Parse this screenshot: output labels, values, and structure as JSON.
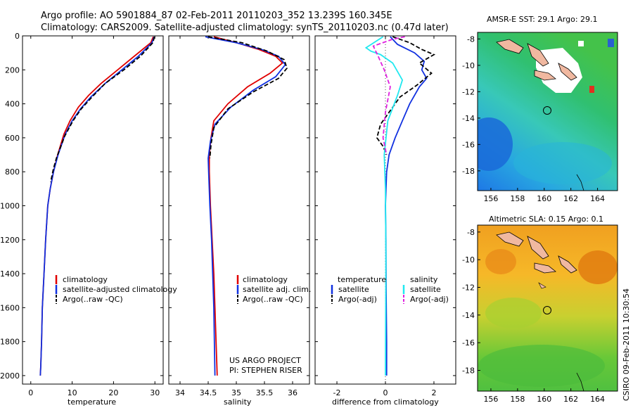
{
  "figure": {
    "title_line1": "Argo profile: AO 5901884_87 02-Feb-2011 20110203_352 13.239S 160.345E",
    "title_line2": "Climatology: CARS2009. Satellite-adjusted climatology: synTS_20110203.nc (0.47d later)",
    "credit": "CSIRO 09-Feb-2011 10:30:54",
    "project_line1": "US ARGO PROJECT",
    "project_line2": "PI: STEPHEN RISER"
  },
  "colors": {
    "climatology": "#e00000",
    "satellite": "#1030e0",
    "argo": "#000000",
    "salinity_sat": "#20e8f0",
    "salinity_argo": "#e020e0",
    "coast_fill": "#f0b8a0",
    "land_fill": "#ffffff"
  },
  "chart_data": [
    {
      "type": "line",
      "panel": "temperature",
      "xlabel": "temperature",
      "xlim": [
        -2,
        32
      ],
      "ylim": [
        2050,
        0
      ],
      "xticks": [
        "0",
        "10",
        "20",
        "30"
      ],
      "xtick_values": [
        0,
        10,
        20,
        30
      ],
      "yticks": [
        "0",
        "200",
        "400",
        "600",
        "800",
        "1000",
        "1200",
        "1400",
        "1600",
        "1800",
        "2000"
      ],
      "ytick_values": [
        0,
        200,
        400,
        600,
        800,
        1000,
        1200,
        1400,
        1600,
        1800,
        2000
      ],
      "legend": [
        "climatology",
        "satellite-adjusted climatology",
        "Argo(..raw -QC)"
      ],
      "series": [
        {
          "name": "climatology",
          "style": "solid",
          "color_key": "climatology",
          "x": [
            29.6,
            29.0,
            25.0,
            21.0,
            17.0,
            14.0,
            11.5,
            9.5,
            8.0,
            6.5,
            5.5,
            4.7,
            4.1,
            3.6,
            3.2,
            2.8,
            2.6,
            2.4,
            2.3
          ],
          "depth": [
            5,
            40,
            120,
            200,
            280,
            350,
            420,
            500,
            580,
            700,
            800,
            900,
            1000,
            1200,
            1400,
            1600,
            1800,
            1950,
            2000
          ]
        },
        {
          "name": "satellite-adjusted climatology",
          "style": "solid",
          "color_key": "satellite",
          "x": [
            29.8,
            29.3,
            26.0,
            22.0,
            18.0,
            14.5,
            12.0,
            10.0,
            8.3,
            6.6,
            5.5,
            4.7,
            4.1,
            3.6,
            3.2,
            2.8,
            2.6,
            2.4,
            2.3
          ],
          "depth": [
            5,
            40,
            120,
            200,
            280,
            360,
            430,
            500,
            580,
            700,
            800,
            900,
            1000,
            1200,
            1400,
            1600,
            1800,
            1950,
            2000
          ]
        },
        {
          "name": "Argo(..raw -QC)",
          "style": "dashed",
          "color_key": "argo",
          "x": [
            29.9,
            29.5,
            26.5,
            22.5,
            18.0,
            14.8,
            12.2,
            10.2,
            8.2,
            6.8,
            6.2,
            5.5,
            4.8
          ],
          "depth": [
            5,
            40,
            120,
            200,
            280,
            360,
            430,
            500,
            590,
            680,
            720,
            780,
            860
          ]
        }
      ]
    },
    {
      "type": "line",
      "panel": "salinity",
      "xlabel": "salinity",
      "xlim": [
        33.8,
        36.3
      ],
      "ylim": [
        2050,
        0
      ],
      "xticks": [
        "34",
        "34.5",
        "35",
        "35.5",
        "36"
      ],
      "xtick_values": [
        34,
        34.5,
        35,
        35.5,
        36
      ],
      "legend": [
        "climatology",
        "satellite adj. clim.",
        "Argo(..raw -QC)"
      ],
      "series": [
        {
          "name": "climatology",
          "style": "solid",
          "color_key": "climatology",
          "x": [
            34.6,
            35.0,
            35.4,
            35.7,
            35.82,
            35.6,
            35.2,
            34.85,
            34.6,
            34.55,
            34.52,
            34.52,
            34.54,
            34.57,
            34.6,
            34.62,
            34.64,
            34.66
          ],
          "depth": [
            5,
            40,
            80,
            120,
            160,
            220,
            300,
            400,
            500,
            600,
            700,
            800,
            1000,
            1200,
            1400,
            1600,
            1800,
            2000
          ]
        },
        {
          "name": "satellite adj. clim.",
          "style": "solid",
          "color_key": "satellite",
          "x": [
            34.45,
            35.0,
            35.45,
            35.75,
            35.87,
            35.7,
            35.3,
            34.9,
            34.62,
            34.54,
            34.5,
            34.51,
            34.53,
            34.56,
            34.58,
            34.6,
            34.61,
            34.62
          ],
          "depth": [
            5,
            40,
            80,
            120,
            170,
            240,
            320,
            420,
            520,
            620,
            720,
            820,
            1000,
            1200,
            1400,
            1600,
            1800,
            2000
          ]
        },
        {
          "name": "Argo(..raw -QC)",
          "style": "dashed",
          "color_key": "argo",
          "x": [
            34.5,
            35.1,
            35.55,
            35.85,
            35.9,
            35.75,
            35.3,
            34.85,
            34.6,
            34.55,
            34.53
          ],
          "depth": [
            5,
            40,
            90,
            140,
            190,
            250,
            330,
            430,
            540,
            640,
            720
          ]
        }
      ]
    },
    {
      "type": "line",
      "panel": "difference",
      "xlabel": "difference from climatology",
      "xlim": [
        -2.9,
        2.9
      ],
      "ylim": [
        2050,
        0
      ],
      "xticks": [
        "-2",
        "0",
        "2"
      ],
      "xtick_values": [
        -2,
        0,
        2
      ],
      "legend_temperature_title": "temperature",
      "legend_salinity_title": "salinity",
      "legend": [
        "satellite",
        "Argo(-adj)",
        "satellite",
        "Argo(-adj)"
      ],
      "series": [
        {
          "name": "temperature satellite",
          "style": "solid",
          "color_key": "satellite",
          "x": [
            0.2,
            0.5,
            1.2,
            1.6,
            1.5,
            1.7,
            1.4,
            1.0,
            0.7,
            0.4,
            0.15,
            0.05,
            0.0,
            0.02,
            0.03,
            0.05,
            0.05
          ],
          "depth": [
            5,
            50,
            100,
            150,
            200,
            250,
            300,
            400,
            500,
            600,
            700,
            800,
            1000,
            1200,
            1500,
            1800,
            2000
          ]
        },
        {
          "name": "temperature Argo(-adj)",
          "style": "dashed",
          "color_key": "argo",
          "x": [
            0.3,
            1.0,
            1.5,
            2.0,
            1.4,
            1.9,
            1.3,
            0.6,
            0.2,
            -0.2,
            -0.35,
            -0.1,
            0.05
          ],
          "depth": [
            5,
            40,
            80,
            110,
            160,
            220,
            290,
            360,
            440,
            520,
            600,
            650,
            700
          ]
        },
        {
          "name": "salinity satellite",
          "style": "solid",
          "color_key": "salinity_sat",
          "x": [
            -0.1,
            -0.8,
            -0.6,
            -0.2,
            0.3,
            0.7,
            0.5,
            0.1,
            -0.05,
            0.0,
            0.02,
            0.0
          ],
          "depth": [
            5,
            70,
            90,
            110,
            160,
            260,
            350,
            500,
            700,
            900,
            1300,
            2000
          ]
        },
        {
          "name": "salinity Argo(-adj)",
          "style": "dashed",
          "color_key": "salinity_argo",
          "x": [
            0.8,
            0.3,
            -0.5,
            -0.3,
            -0.05,
            0.2,
            0.0,
            -0.1,
            0.05
          ],
          "depth": [
            5,
            20,
            60,
            120,
            200,
            300,
            450,
            600,
            700
          ]
        }
      ]
    },
    {
      "type": "heatmap",
      "panel": "sst_map",
      "title": "AMSR-E SST: 29.1 Argo: 29.1",
      "xlim": [
        155,
        165.5
      ],
      "ylim": [
        -19.5,
        -7.5
      ],
      "xticks": [
        "156",
        "158",
        "160",
        "162",
        "164"
      ],
      "xtick_values": [
        156,
        158,
        160,
        162,
        164
      ],
      "yticks": [
        "-8",
        "-10",
        "-12",
        "-14",
        "-16",
        "-18"
      ],
      "ytick_values": [
        -8,
        -10,
        -12,
        -14,
        -16,
        -18
      ],
      "marker": {
        "lon": 160.345,
        "lat": -13.239
      }
    },
    {
      "type": "heatmap",
      "panel": "sla_map",
      "title": "Altimetric SLA: 0.15 Argo: 0.1",
      "xlim": [
        155,
        165.5
      ],
      "ylim": [
        -19.5,
        -7.5
      ],
      "xticks": [
        "156",
        "158",
        "160",
        "162",
        "164"
      ],
      "xtick_values": [
        156,
        158,
        160,
        162,
        164
      ],
      "yticks": [
        "-8",
        "-10",
        "-12",
        "-14",
        "-16",
        "-18"
      ],
      "ytick_values": [
        -8,
        -10,
        -12,
        -14,
        -16,
        -18
      ],
      "marker": {
        "lon": 160.345,
        "lat": -13.239
      }
    }
  ]
}
